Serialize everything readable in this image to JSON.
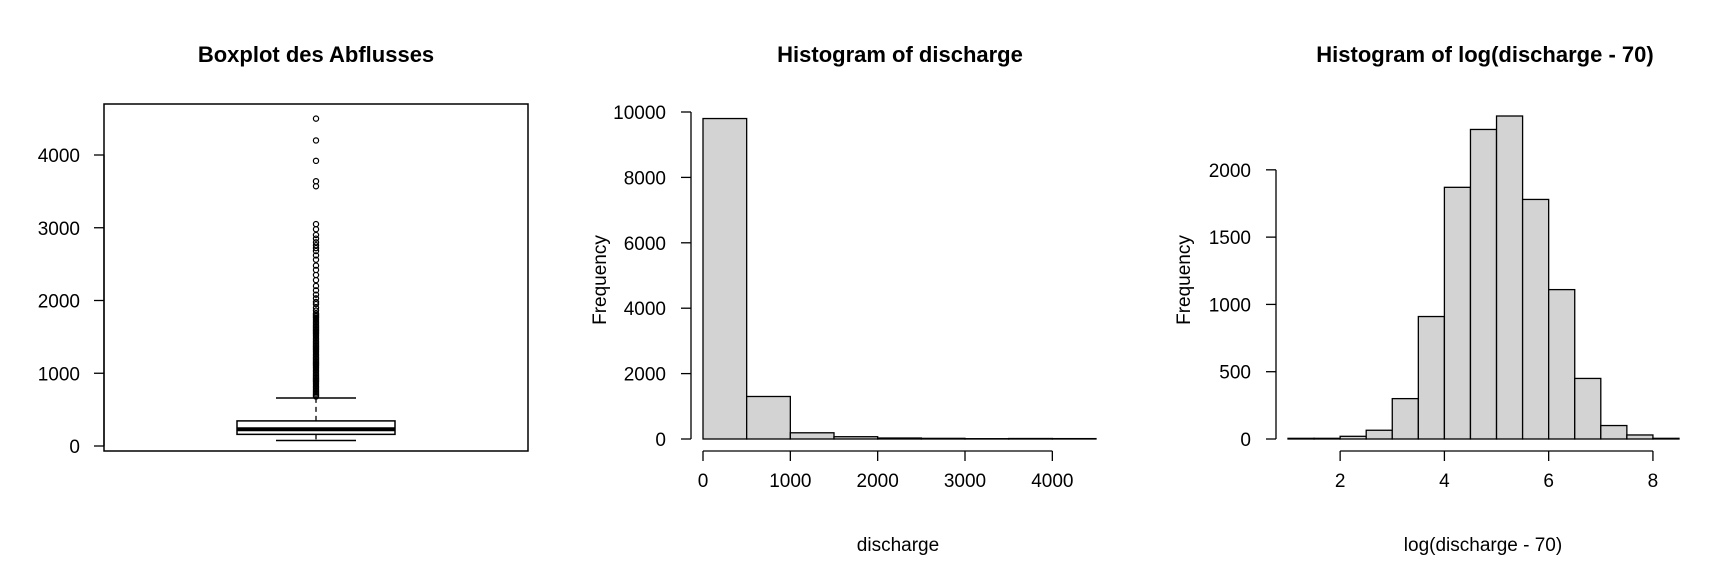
{
  "chart_data": [
    {
      "type": "boxplot",
      "title": "Boxplot des Abflusses",
      "xlabel": "",
      "ylabel": "",
      "ylim": [
        -70,
        4700
      ],
      "yticks": [
        0,
        1000,
        2000,
        3000,
        4000
      ],
      "tick_labels": [
        "0",
        "1000",
        "2000",
        "3000",
        "4000"
      ],
      "box": {
        "whisker_low": 75,
        "q1": 160,
        "median": 230,
        "q3": 345,
        "whisker_high": 660
      },
      "outliers": [
        4500,
        4200,
        3920,
        3640,
        3570,
        3050,
        2980,
        2900,
        2850,
        2800,
        2760,
        2720,
        2680,
        2620,
        2560,
        2480,
        2420,
        2350,
        2280,
        2200,
        2140,
        2080,
        2030,
        1980,
        1950,
        1900,
        1860,
        1820,
        1800,
        1780,
        1760,
        1740,
        1720,
        1700,
        1680,
        1660,
        1640,
        1620,
        1600,
        1580,
        1560,
        1540,
        1520,
        1500,
        1480,
        1460,
        1440,
        1420,
        1400,
        1380,
        1360,
        1340,
        1320,
        1300,
        1280,
        1260,
        1240,
        1220,
        1200,
        1180,
        1160,
        1140,
        1120,
        1100,
        1080,
        1060,
        1040,
        1020,
        1000,
        980,
        960,
        940,
        920,
        900,
        880,
        860,
        840,
        820,
        800,
        780,
        760,
        740,
        720,
        700,
        680
      ]
    },
    {
      "type": "histogram",
      "title": "Histogram of discharge",
      "xlabel": "discharge",
      "ylabel": "Frequency",
      "xlim": [
        0,
        4500
      ],
      "ylim": [
        0,
        10000
      ],
      "xticks": [
        0,
        1000,
        2000,
        3000,
        4000
      ],
      "x_tick_labels": [
        "0",
        "1000",
        "2000",
        "3000",
        "4000"
      ],
      "yticks": [
        0,
        2000,
        4000,
        6000,
        8000,
        10000
      ],
      "y_tick_labels": [
        "0",
        "2000",
        "4000",
        "6000",
        "8000",
        "10000"
      ],
      "bin_edges": [
        0,
        500,
        1000,
        1500,
        2000,
        2500,
        3000,
        3500,
        4000,
        4500
      ],
      "counts": [
        9800,
        1300,
        190,
        70,
        30,
        20,
        10,
        15,
        12
      ]
    },
    {
      "type": "histogram",
      "title": "Histogram of log(discharge - 70)",
      "xlabel": "log(discharge - 70)",
      "ylabel": "Frequency",
      "xlim": [
        1,
        8.5
      ],
      "ylim": [
        0,
        2400
      ],
      "xticks": [
        2,
        4,
        6,
        8
      ],
      "x_tick_labels": [
        "2",
        "4",
        "6",
        "8"
      ],
      "yticks": [
        0,
        500,
        1000,
        1500,
        2000
      ],
      "y_tick_labels": [
        "0",
        "500",
        "1000",
        "1500",
        "2000"
      ],
      "bin_edges": [
        1,
        1.5,
        2,
        2.5,
        3,
        3.5,
        4,
        4.5,
        5,
        5.5,
        6,
        6.5,
        7,
        7.5,
        8,
        8.5
      ],
      "counts": [
        5,
        5,
        20,
        65,
        300,
        910,
        1870,
        2300,
        2400,
        1780,
        1110,
        450,
        100,
        30,
        5
      ]
    }
  ],
  "style": {
    "bar_fill": "#d3d3d3",
    "stroke": "#000000",
    "background": "#ffffff"
  }
}
